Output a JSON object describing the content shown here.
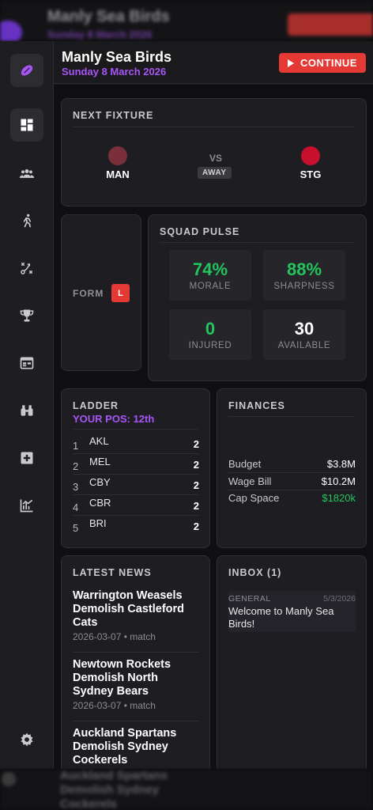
{
  "header": {
    "club_name": "Manly Sea Birds",
    "date": "Sunday 8 March 2026",
    "continue_label": "CONTINUE"
  },
  "sidebar": {
    "items": [
      {
        "icon": "rugby-ball-icon",
        "active": false
      },
      {
        "icon": "dashboard-icon",
        "active": true
      },
      {
        "icon": "squad-icon",
        "active": false
      },
      {
        "icon": "training-icon",
        "active": false
      },
      {
        "icon": "tactics-icon",
        "active": false
      },
      {
        "icon": "trophy-icon",
        "active": false
      },
      {
        "icon": "calendar-icon",
        "active": false
      },
      {
        "icon": "scouting-icon",
        "active": false
      },
      {
        "icon": "medical-icon",
        "active": false
      },
      {
        "icon": "stats-icon",
        "active": false
      },
      {
        "icon": "settings-icon",
        "active": false
      }
    ]
  },
  "next_fixture": {
    "title": "NEXT FIXTURE",
    "home": {
      "abbr": "MAN",
      "color": "#7a2f3a"
    },
    "away": {
      "abbr": "STG",
      "color": "#c8102e"
    },
    "vs": "VS",
    "venue": "AWAY"
  },
  "form": {
    "label": "FORM",
    "results": [
      "L"
    ]
  },
  "squad_pulse": {
    "title": "SQUAD PULSE",
    "stats": [
      {
        "value": "74%",
        "label": "MORALE",
        "color": "#22c55e"
      },
      {
        "value": "88%",
        "label": "SHARPNESS",
        "color": "#22c55e"
      },
      {
        "value": "0",
        "label": "INJURED",
        "color": "#22c55e"
      },
      {
        "value": "30",
        "label": "AVAILABLE",
        "color": "#ffffff"
      }
    ]
  },
  "ladder": {
    "title": "LADDER",
    "your_pos": "YOUR POS: 12th",
    "rows": [
      {
        "pos": "1",
        "team": "AKL",
        "pts": "2"
      },
      {
        "pos": "2",
        "team": "MEL",
        "pts": "2"
      },
      {
        "pos": "3",
        "team": "CBY",
        "pts": "2"
      },
      {
        "pos": "4",
        "team": "CBR",
        "pts": "2"
      },
      {
        "pos": "5",
        "team": "BRI",
        "pts": "2"
      }
    ]
  },
  "finances": {
    "title": "FINANCES",
    "rows": [
      {
        "label": "Budget",
        "value": "$3.8M"
      },
      {
        "label": "Wage Bill",
        "value": "$10.2M"
      },
      {
        "label": "Cap Space",
        "value": "$1820k"
      }
    ]
  },
  "news": {
    "title": "LATEST NEWS",
    "items": [
      {
        "headline": "Warrington Weasels Demolish Castleford Cats",
        "meta": "2026-03-07 • match"
      },
      {
        "headline": "Newtown Rockets Demolish North Sydney Bears",
        "meta": "2026-03-07 • match"
      },
      {
        "headline": "Auckland Spartans Demolish Sydney Cockerels",
        "meta": ""
      }
    ]
  },
  "inbox": {
    "title": "INBOX (1)",
    "messages": [
      {
        "category": "GENERAL",
        "date": "5/3/2026",
        "text": "Welcome to Manly Sea Birds!"
      }
    ]
  },
  "colors": {
    "accent": "#a855f7",
    "continue": "#e53935",
    "positive": "#22c55e",
    "loss": "#e53935"
  }
}
